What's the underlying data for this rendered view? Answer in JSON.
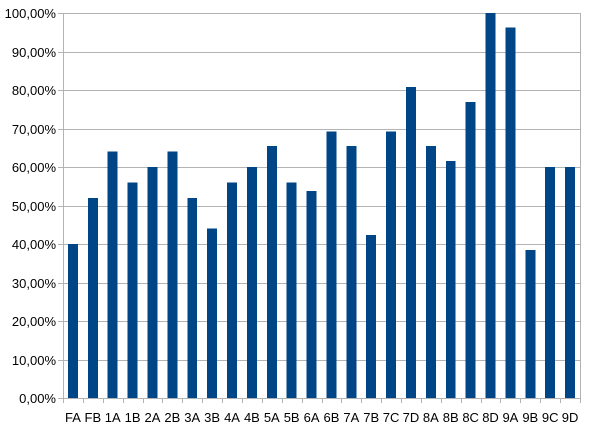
{
  "chart_data": {
    "type": "bar",
    "title": "",
    "xlabel": "",
    "ylabel": "",
    "ylim": [
      0,
      1
    ],
    "yticks": [
      0,
      0.1,
      0.2,
      0.3,
      0.4,
      0.5,
      0.6,
      0.7,
      0.8,
      0.9,
      1.0
    ],
    "ytick_labels": [
      "0,00%",
      "10,00%",
      "20,00%",
      "30,00%",
      "40,00%",
      "50,00%",
      "60,00%",
      "70,00%",
      "80,00%",
      "90,00%",
      "100,00%"
    ],
    "grid": true,
    "legend": "none",
    "bar_color": "#004586",
    "categories": [
      "FA",
      "FB",
      "1A",
      "1B",
      "2A",
      "2B",
      "3A",
      "3B",
      "4A",
      "4B",
      "5A",
      "5B",
      "6A",
      "6B",
      "7A",
      "7B",
      "7C",
      "7D",
      "8A",
      "8B",
      "8C",
      "8D",
      "9A",
      "9B",
      "9C",
      "9D"
    ],
    "values": [
      0.4,
      0.52,
      0.64,
      0.56,
      0.6,
      0.64,
      0.52,
      0.44,
      0.56,
      0.6,
      0.654,
      0.56,
      0.538,
      0.692,
      0.654,
      0.423,
      0.692,
      0.808,
      0.654,
      0.615,
      0.769,
      1.0,
      0.962,
      0.385,
      0.6,
      0.6
    ]
  }
}
